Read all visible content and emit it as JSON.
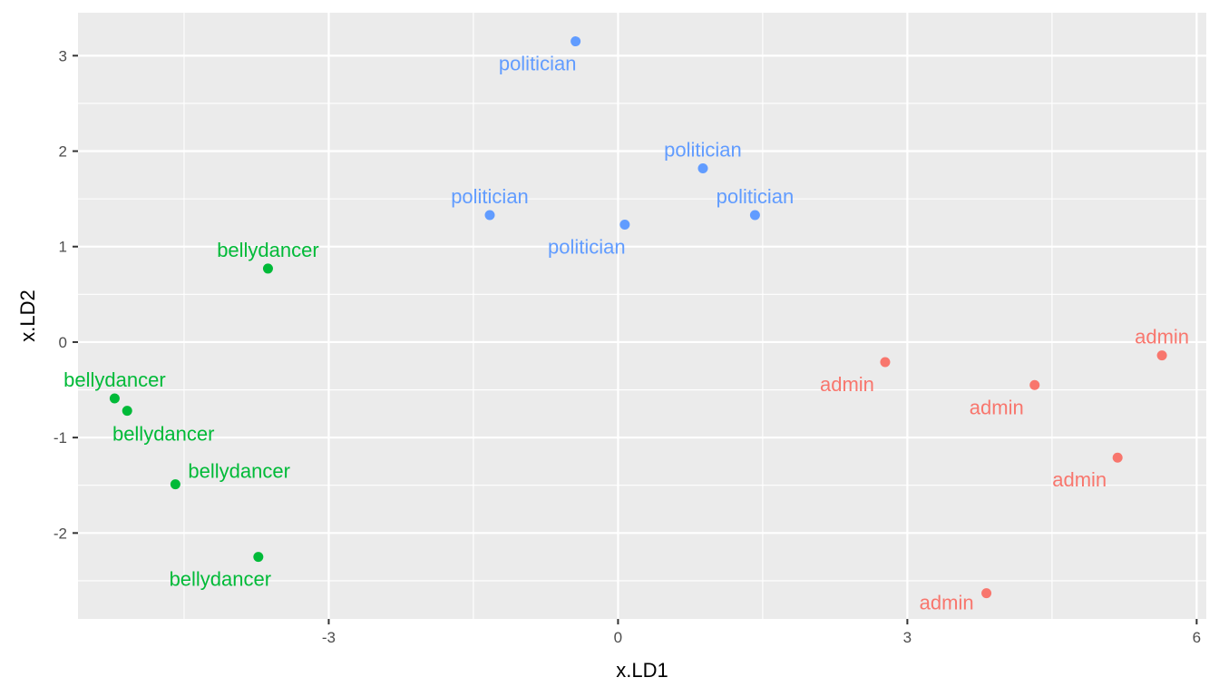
{
  "chart_data": {
    "type": "scatter",
    "xlabel": "x.LD1",
    "ylabel": "x.LD2",
    "xlim": [
      -5.6,
      6.1
    ],
    "ylim": [
      -2.9,
      3.45
    ],
    "xticks": [
      -3,
      0,
      3,
      6
    ],
    "xtick_labels": [
      "-3",
      "0",
      "3",
      "6"
    ],
    "yticks": [
      -2,
      -1,
      0,
      1,
      2,
      3
    ],
    "ytick_labels": [
      "-2",
      "-1",
      "0",
      "1",
      "2",
      "3"
    ],
    "grid": true,
    "legend": "none",
    "colors": {
      "admin": "#F8766D",
      "bellydancer": "#00BA38",
      "politician": "#619CFF"
    },
    "series": [
      {
        "group": "admin",
        "points": [
          {
            "x": 2.77,
            "y": -0.21,
            "label": "admin",
            "label_pos": "below-left"
          },
          {
            "x": 4.32,
            "y": -0.45,
            "label": "admin",
            "label_pos": "below-left"
          },
          {
            "x": 5.64,
            "y": -0.14,
            "label": "admin",
            "label_pos": "above"
          },
          {
            "x": 5.18,
            "y": -1.21,
            "label": "admin",
            "label_pos": "below-left"
          },
          {
            "x": 3.82,
            "y": -2.63,
            "label": "admin",
            "label_pos": "left"
          }
        ]
      },
      {
        "group": "bellydancer",
        "points": [
          {
            "x": -3.63,
            "y": 0.77,
            "label": "bellydancer",
            "label_pos": "above"
          },
          {
            "x": -5.22,
            "y": -0.59,
            "label": "bellydancer",
            "label_pos": "above"
          },
          {
            "x": -5.09,
            "y": -0.72,
            "label": "bellydancer",
            "label_pos": "below"
          },
          {
            "x": -4.59,
            "y": -1.49,
            "label": "bellydancer",
            "label_pos": "right"
          },
          {
            "x": -3.73,
            "y": -2.25,
            "label": "bellydancer",
            "label_pos": "below-left"
          }
        ]
      },
      {
        "group": "politician",
        "points": [
          {
            "x": -0.44,
            "y": 3.15,
            "label": "politician",
            "label_pos": "below-left"
          },
          {
            "x": 0.88,
            "y": 1.82,
            "label": "politician",
            "label_pos": "above"
          },
          {
            "x": -1.33,
            "y": 1.33,
            "label": "politician",
            "label_pos": "above"
          },
          {
            "x": 0.07,
            "y": 1.23,
            "label": "politician",
            "label_pos": "below-left"
          },
          {
            "x": 1.42,
            "y": 1.33,
            "label": "politician",
            "label_pos": "above"
          }
        ]
      }
    ]
  }
}
